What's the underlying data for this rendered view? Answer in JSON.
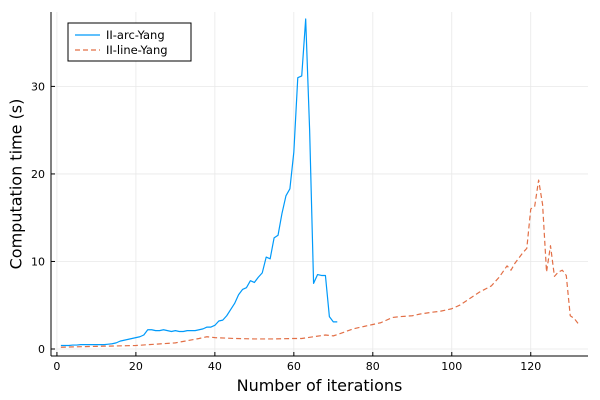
{
  "chart_data": {
    "type": "line",
    "title": "",
    "xlabel": "Number of iterations",
    "ylabel": "Computation time (s)",
    "xlim": [
      -1.5,
      134.5
    ],
    "ylim": [
      -0.8,
      38.5
    ],
    "xticks": [
      0,
      20,
      40,
      60,
      80,
      100,
      120
    ],
    "yticks": [
      0,
      10,
      20,
      30
    ],
    "grid": true,
    "legend": "top-left",
    "series": [
      {
        "name": "II-arc-Yang",
        "color": "#009AFA",
        "dash": "solid",
        "x": [
          1,
          2,
          3,
          4,
          5,
          6,
          7,
          8,
          9,
          10,
          11,
          12,
          13,
          14,
          15,
          16,
          17,
          18,
          19,
          20,
          21,
          22,
          23,
          24,
          25,
          26,
          27,
          28,
          29,
          30,
          31,
          32,
          33,
          34,
          35,
          36,
          37,
          38,
          39,
          40,
          41,
          42,
          43,
          44,
          45,
          46,
          47,
          48,
          49,
          50,
          51,
          52,
          53,
          54,
          55,
          56,
          57,
          58,
          59,
          60,
          61,
          62,
          63,
          64,
          65,
          66,
          67,
          68,
          69,
          70,
          71
        ],
        "y": [
          0.4,
          0.4,
          0.4,
          0.45,
          0.45,
          0.5,
          0.5,
          0.5,
          0.5,
          0.5,
          0.5,
          0.5,
          0.55,
          0.6,
          0.7,
          0.9,
          1.0,
          1.1,
          1.2,
          1.3,
          1.4,
          1.6,
          2.2,
          2.2,
          2.1,
          2.1,
          2.2,
          2.1,
          2.0,
          2.1,
          2.0,
          2.0,
          2.1,
          2.1,
          2.1,
          2.2,
          2.3,
          2.5,
          2.5,
          2.7,
          3.2,
          3.3,
          3.8,
          4.5,
          5.2,
          6.2,
          6.8,
          7.0,
          7.8,
          7.6,
          8.2,
          8.7,
          10.5,
          10.3,
          12.7,
          13.0,
          15.5,
          17.5,
          18.3,
          22.5,
          31.0,
          31.2,
          37.7,
          25.0,
          7.5,
          8.5,
          8.4,
          8.4,
          3.7,
          3.1,
          3.1
        ]
      },
      {
        "name": "II-line-Yang",
        "color": "#E26F46",
        "dash": "dashed",
        "x": [
          1,
          5,
          10,
          15,
          20,
          25,
          30,
          33,
          36,
          38,
          40,
          45,
          50,
          55,
          60,
          62,
          65,
          68,
          70,
          72,
          75,
          78,
          80,
          82,
          85,
          87,
          90,
          92,
          95,
          97,
          100,
          102,
          105,
          107,
          110,
          112,
          114,
          115,
          116,
          118,
          119,
          120,
          121,
          122,
          123,
          124,
          125,
          126,
          127,
          128,
          129,
          130,
          131,
          132
        ],
        "y": [
          0.2,
          0.25,
          0.3,
          0.35,
          0.4,
          0.55,
          0.7,
          0.95,
          1.2,
          1.4,
          1.3,
          1.2,
          1.15,
          1.15,
          1.2,
          1.2,
          1.4,
          1.6,
          1.5,
          1.8,
          2.3,
          2.6,
          2.8,
          3.0,
          3.6,
          3.7,
          3.8,
          4.0,
          4.2,
          4.3,
          4.6,
          5.0,
          5.9,
          6.5,
          7.2,
          8.2,
          9.5,
          9.0,
          9.8,
          11.0,
          11.5,
          16.0,
          16.3,
          19.3,
          16.5,
          8.8,
          11.8,
          8.3,
          8.8,
          9.0,
          8.4,
          3.8,
          3.5,
          2.9
        ]
      }
    ]
  }
}
